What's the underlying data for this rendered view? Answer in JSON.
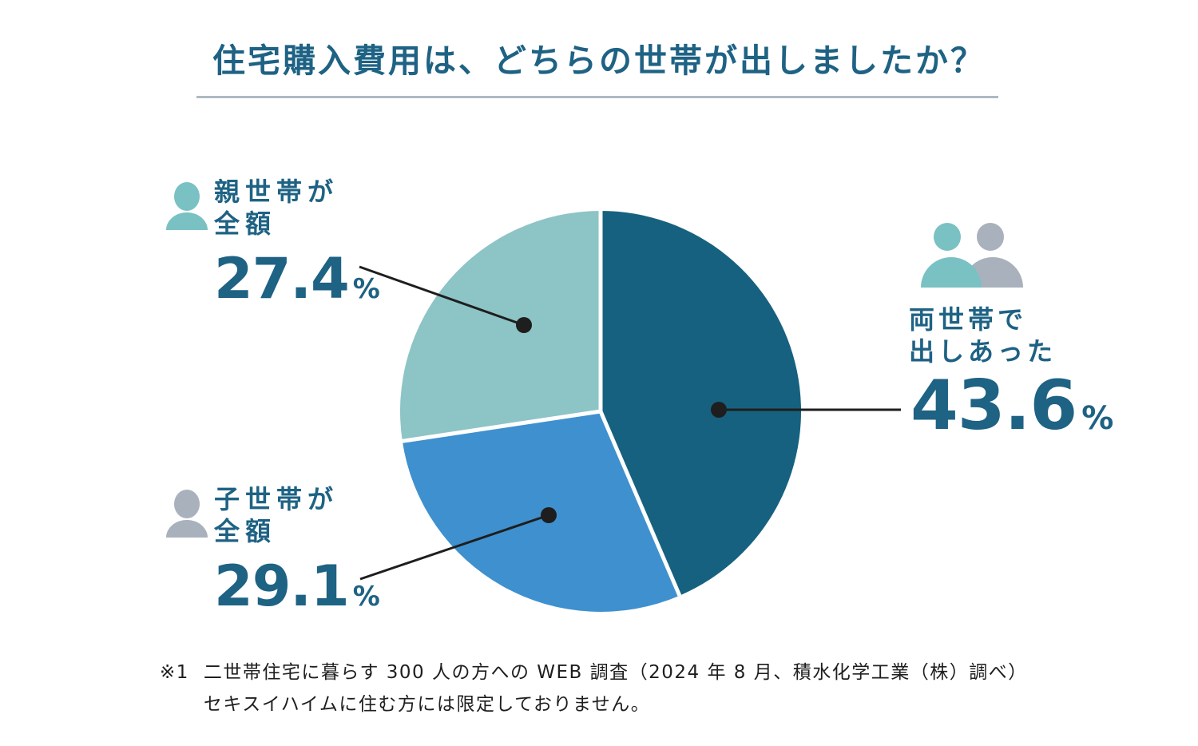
{
  "title": "住宅購入費用は、どちらの世帯が出しましたか？",
  "chart_data": {
    "type": "pie",
    "title": "住宅購入費用は、どちらの世帯が出しましたか？",
    "unit": "%",
    "start_angle_deg_from_top": 0,
    "direction": "clockwise",
    "slices": [
      {
        "label": "両世帯で出しあった",
        "value": 43.6,
        "color": "#16617F"
      },
      {
        "label": "子世帯が全額",
        "value": 29.1,
        "color": "#3F90CE"
      },
      {
        "label": "親世帯が全額",
        "value": 27.4,
        "color": "#8DC4C6"
      }
    ],
    "separator_color": "#FFFFFF",
    "legend_position": "callout-labels"
  },
  "labels": {
    "parent": {
      "line1": "親世帯が",
      "line2": "全額",
      "value": "27.4",
      "unit": "%"
    },
    "child": {
      "line1": "子世帯が",
      "line2": "全額",
      "value": "29.1",
      "unit": "%"
    },
    "both": {
      "line1": "両世帯で",
      "line2": "出しあった",
      "value": "43.6",
      "unit": "%"
    }
  },
  "icons": {
    "parent": "person-icon-teal",
    "child": "person-icon-gray",
    "both": "two-person-icon-teal-gray"
  },
  "footnote": {
    "marker": "※1",
    "line1": "二世帯住宅に暮らす 300 人の方への WEB 調査（2024 年 8 月、積水化学工業（株）調べ）",
    "line2": "セキスイハイムに住む方には限定しておりません。"
  },
  "colors": {
    "title_text": "#1E6284",
    "pie_dark_blue": "#16617F",
    "pie_blue": "#3F90CE",
    "pie_teal": "#8DC4C6",
    "icon_teal": "#79C1C3",
    "icon_gray": "#A9B1BD",
    "leader_line": "#1E1E1E",
    "divider": "#AFBAC0",
    "footnote_text": "#1E1E1E"
  }
}
